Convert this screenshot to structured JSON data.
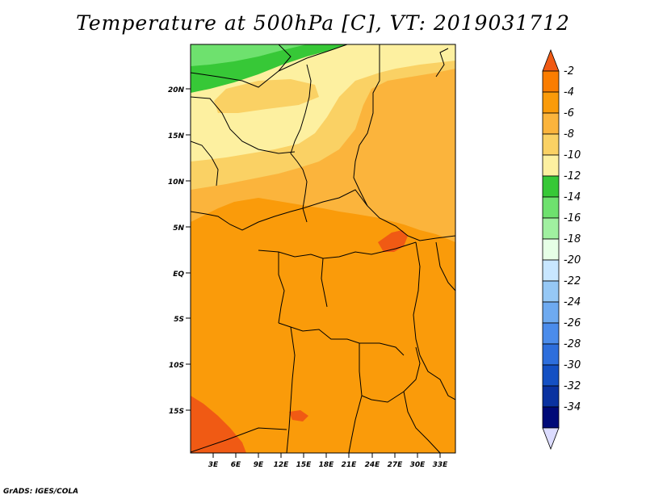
{
  "title": "Temperature at 500hPa [C], VT: 2019031712",
  "credit": "GrADS: IGES/COLA",
  "map": {
    "lat_ticks": [
      "20N",
      "15N",
      "10N",
      "5N",
      "EQ",
      "5S",
      "10S",
      "15S"
    ],
    "lon_ticks": [
      "3E",
      "6E",
      "9E",
      "12E",
      "15E",
      "18E",
      "21E",
      "24E",
      "27E",
      "30E",
      "33E"
    ]
  },
  "colorbar": {
    "labels": [
      "-2",
      "-4",
      "-6",
      "-8",
      "-10",
      "-12",
      "-14",
      "-16",
      "-18",
      "-20",
      "-22",
      "-24",
      "-26",
      "-28",
      "-30",
      "-32",
      "-34"
    ],
    "colors": [
      "#f05a14",
      "#fa7d00",
      "#fa9b0a",
      "#fbb43c",
      "#fad164",
      "#fdf0a0",
      "#37c837",
      "#6ee16e",
      "#a0f0a0",
      "#e6ffe6",
      "#c8e6ff",
      "#96c8f5",
      "#6eaaf0",
      "#4b8ceb",
      "#2d6edc",
      "#1450c3",
      "#0a32a0",
      "#000a78",
      "#dcdcff"
    ]
  },
  "colors": {
    "base_field": "#fa9b0a",
    "border_line": "#000000"
  }
}
